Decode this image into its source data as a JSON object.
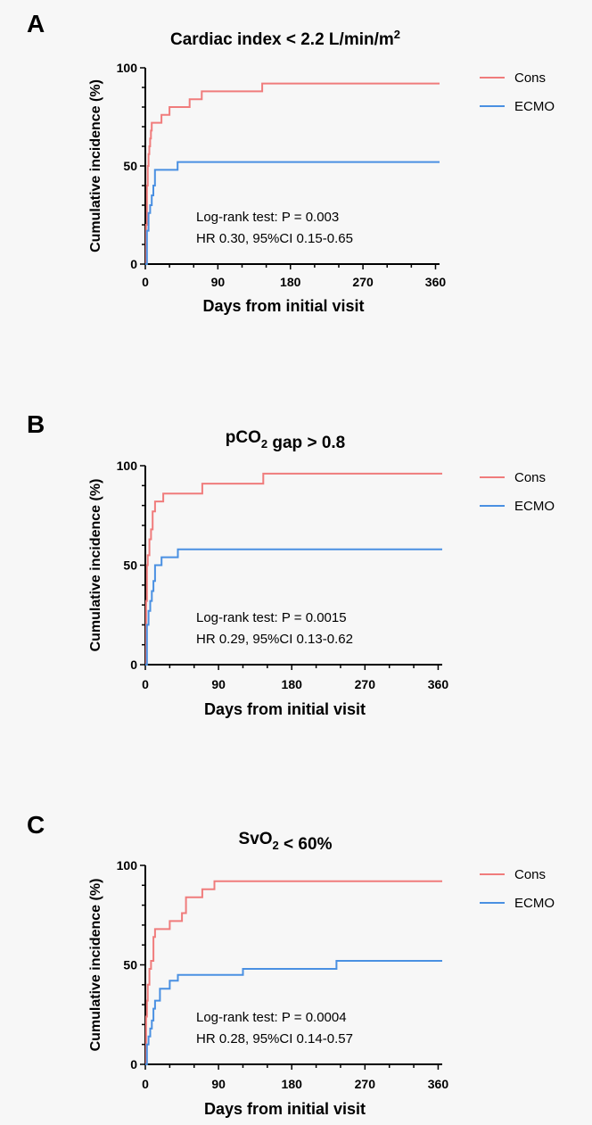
{
  "chart_data": [
    {
      "panel_letter": "A",
      "title_parts": [
        {
          "text": "Cardiac index < 2.2 L/min/m"
        },
        {
          "text": "2",
          "sup": true
        }
      ],
      "type": "line",
      "step": true,
      "xlabel": "Days from initial visit",
      "ylabel": "Cumulative incidence (%)",
      "xlim": [
        0,
        365
      ],
      "ylim": [
        0,
        100
      ],
      "xticks": [
        "0",
        "90",
        "180",
        "270",
        "360"
      ],
      "xtick_values": [
        0,
        90,
        180,
        270,
        360
      ],
      "yticks": [
        "0",
        "50",
        "100"
      ],
      "ytick_values": [
        0,
        50,
        100
      ],
      "legend_position": "top-right",
      "annotation": [
        "Log-rank test: P = 0.003",
        "HR 0.30, 95%CI 0.15-0.65"
      ],
      "series": [
        {
          "name": "Cons",
          "color": "#f07c7c",
          "x": [
            0,
            1,
            2,
            3,
            4,
            5,
            6,
            7,
            8,
            9,
            10,
            20,
            30,
            40,
            55,
            70,
            145,
            365
          ],
          "y": [
            0,
            20,
            40,
            50,
            56,
            60,
            64,
            68,
            72,
            72,
            72,
            76,
            80,
            80,
            84,
            88,
            92,
            92
          ]
        },
        {
          "name": "ECMO",
          "color": "#4a90e2",
          "x": [
            0,
            2,
            4,
            6,
            8,
            10,
            12,
            40,
            365
          ],
          "y": [
            0,
            17,
            26,
            30,
            35,
            40,
            48,
            52,
            52
          ]
        }
      ]
    },
    {
      "panel_letter": "B",
      "title_parts": [
        {
          "text": "pCO"
        },
        {
          "text": "2",
          "sub": true
        },
        {
          "text": " gap > 0.8"
        }
      ],
      "type": "line",
      "step": true,
      "xlabel": "Days from initial visit",
      "ylabel": "Cumulative incidence (%)",
      "xlim": [
        0,
        365
      ],
      "ylim": [
        0,
        100
      ],
      "xticks": [
        "0",
        "90",
        "180",
        "270",
        "360"
      ],
      "xtick_values": [
        0,
        90,
        180,
        270,
        360
      ],
      "yticks": [
        "0",
        "50",
        "100"
      ],
      "ytick_values": [
        0,
        50,
        100
      ],
      "legend_position": "top-right",
      "annotation": [
        "Log-rank test: P = 0.0015",
        "HR 0.29, 95%CI 0.13-0.62"
      ],
      "series": [
        {
          "name": "Cons",
          "color": "#f07c7c",
          "x": [
            0,
            1,
            2,
            3,
            5,
            7,
            9,
            12,
            22,
            70,
            145,
            365
          ],
          "y": [
            0,
            32,
            50,
            55,
            63,
            68,
            77,
            82,
            86,
            91,
            96,
            96
          ]
        },
        {
          "name": "ECMO",
          "color": "#4a90e2",
          "x": [
            0,
            2,
            4,
            6,
            8,
            10,
            12,
            20,
            40,
            365
          ],
          "y": [
            0,
            20,
            27,
            32,
            37,
            42,
            50,
            54,
            58,
            58
          ]
        }
      ]
    },
    {
      "panel_letter": "C",
      "title_parts": [
        {
          "text": "SvO"
        },
        {
          "text": "2",
          "sub": true
        },
        {
          "text": " < 60%"
        }
      ],
      "type": "line",
      "step": true,
      "xlabel": "Days from initial visit",
      "ylabel": "Cumulative incidence (%)",
      "xlim": [
        0,
        365
      ],
      "ylim": [
        0,
        100
      ],
      "xticks": [
        "0",
        "90",
        "180",
        "270",
        "360"
      ],
      "xtick_values": [
        0,
        90,
        180,
        270,
        360
      ],
      "yticks": [
        "0",
        "50",
        "100"
      ],
      "ytick_values": [
        0,
        50,
        100
      ],
      "legend_position": "top-right",
      "annotation": [
        "Log-rank test: P = 0.0004",
        "HR 0.28, 95%CI 0.14-0.57"
      ],
      "series": [
        {
          "name": "Cons",
          "color": "#f07c7c",
          "x": [
            0,
            1,
            2,
            3,
            5,
            7,
            10,
            12,
            30,
            45,
            50,
            70,
            85,
            365
          ],
          "y": [
            0,
            24,
            32,
            40,
            48,
            52,
            64,
            68,
            72,
            76,
            84,
            88,
            92,
            92
          ]
        },
        {
          "name": "ECMO",
          "color": "#4a90e2",
          "x": [
            0,
            2,
            4,
            6,
            8,
            10,
            12,
            18,
            30,
            40,
            120,
            235,
            365
          ],
          "y": [
            0,
            10,
            14,
            18,
            22,
            28,
            32,
            38,
            42,
            45,
            48,
            52,
            52
          ]
        }
      ]
    }
  ]
}
